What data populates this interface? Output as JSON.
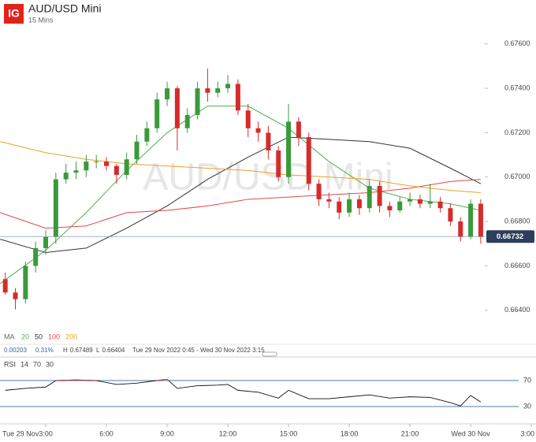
{
  "chart_data": [
    {
      "type": "candlestick",
      "title": "AUD/USD Mini",
      "subtitle": "15 Mins",
      "watermark": "AUD/USD Mini",
      "logo": "IG",
      "x": [
        1,
        1.5,
        2,
        2.5,
        3,
        3.5,
        4,
        4.5,
        5,
        5.5,
        6,
        6.5,
        7,
        7.5,
        8,
        8.5,
        9,
        9.5,
        10,
        10.5,
        11,
        11.5,
        12,
        12.5,
        13,
        13.5,
        14,
        14.5,
        15,
        15.5,
        16,
        16.5,
        17,
        17.5,
        18,
        18.5,
        19,
        19.5,
        20,
        20.5,
        21,
        21.5,
        22,
        22.5,
        23,
        23.5,
        24,
        24.5
      ],
      "open": [
        0.6654,
        0.6648,
        0.6645,
        0.666,
        0.6668,
        0.6673,
        0.6699,
        0.6702,
        0.6703,
        0.6707,
        0.6707,
        0.6705,
        0.6701,
        0.6708,
        0.6716,
        0.6722,
        0.6735,
        0.674,
        0.6722,
        0.6728,
        0.674,
        0.6738,
        0.674,
        0.6742,
        0.673,
        0.6722,
        0.672,
        0.6712,
        0.67,
        0.6725,
        0.6718,
        0.6697,
        0.669,
        0.6689,
        0.6684,
        0.669,
        0.6686,
        0.6696,
        0.6687,
        0.6685,
        0.6689,
        0.669,
        0.6688,
        0.6689,
        0.6686,
        0.668,
        0.6673,
        0.6688
      ],
      "high": [
        0.6657,
        0.665,
        0.6662,
        0.6671,
        0.6676,
        0.6702,
        0.6706,
        0.6707,
        0.671,
        0.671,
        0.6709,
        0.6706,
        0.6711,
        0.6719,
        0.6725,
        0.6738,
        0.6743,
        0.6741,
        0.6731,
        0.6743,
        0.67489,
        0.6743,
        0.6746,
        0.6744,
        0.6733,
        0.6725,
        0.6723,
        0.6714,
        0.6733,
        0.6727,
        0.672,
        0.6699,
        0.6693,
        0.6691,
        0.6693,
        0.6692,
        0.6699,
        0.6698,
        0.6689,
        0.6691,
        0.6693,
        0.6692,
        0.6697,
        0.6691,
        0.6688,
        0.6682,
        0.669,
        0.669
      ],
      "low": [
        0.6647,
        0.66404,
        0.6643,
        0.6657,
        0.6665,
        0.667,
        0.6697,
        0.6699,
        0.67,
        0.6704,
        0.6703,
        0.6697,
        0.6699,
        0.6706,
        0.6714,
        0.672,
        0.6732,
        0.6712,
        0.672,
        0.6726,
        0.6734,
        0.6736,
        0.6738,
        0.6728,
        0.6718,
        0.6716,
        0.6708,
        0.6698,
        0.6697,
        0.6714,
        0.6694,
        0.6687,
        0.6686,
        0.6681,
        0.6682,
        0.6683,
        0.6684,
        0.6684,
        0.6682,
        0.6684,
        0.6687,
        0.6686,
        0.6686,
        0.6684,
        0.6678,
        0.6671,
        0.6672,
        0.667
      ],
      "close": [
        0.6648,
        0.6645,
        0.666,
        0.6668,
        0.6673,
        0.6699,
        0.6702,
        0.6703,
        0.6707,
        0.6707,
        0.6705,
        0.6701,
        0.6708,
        0.6716,
        0.6722,
        0.6735,
        0.674,
        0.6722,
        0.6728,
        0.674,
        0.6738,
        0.674,
        0.6742,
        0.673,
        0.6722,
        0.672,
        0.6712,
        0.67,
        0.6725,
        0.6718,
        0.6697,
        0.669,
        0.6689,
        0.6684,
        0.669,
        0.6686,
        0.6696,
        0.6687,
        0.6685,
        0.6689,
        0.669,
        0.6688,
        0.6689,
        0.6686,
        0.668,
        0.6673,
        0.6688,
        0.6673
      ],
      "up_color": "#3a9a3a",
      "down_color": "#d62b2b",
      "ma_label": "MA",
      "ma_series": [
        {
          "name": "20",
          "color": "#4caf50",
          "x": [
            0.75,
            3,
            5,
            7,
            9,
            11,
            13,
            15,
            17,
            19,
            21,
            23,
            24.5
          ],
          "values": [
            0.6652,
            0.6667,
            0.6684,
            0.6703,
            0.672,
            0.6732,
            0.6732,
            0.6722,
            0.6707,
            0.6695,
            0.669,
            0.6688,
            0.6685
          ]
        },
        {
          "name": "50",
          "color": "#333333",
          "x": [
            0.75,
            3,
            5,
            7,
            9,
            11,
            13,
            15,
            17,
            19,
            21,
            23,
            24.5
          ],
          "values": [
            0.6672,
            0.6666,
            0.6668,
            0.6677,
            0.6687,
            0.6699,
            0.6709,
            0.6718,
            0.6717,
            0.6716,
            0.6713,
            0.6704,
            0.6697
          ]
        },
        {
          "name": "100",
          "color": "#e04848",
          "x": [
            0.75,
            3,
            5,
            7,
            9,
            11,
            13,
            15,
            17,
            19,
            21,
            23,
            24.5
          ],
          "values": [
            0.6684,
            0.6677,
            0.6678,
            0.6684,
            0.6685,
            0.6687,
            0.669,
            0.6691,
            0.6692,
            0.6693,
            0.6695,
            0.6698,
            0.6699
          ]
        },
        {
          "name": "200",
          "color": "#f0a020",
          "x": [
            0.75,
            3,
            5,
            7,
            9,
            11,
            13,
            15,
            17,
            19,
            21,
            23,
            24.5
          ],
          "values": [
            0.6716,
            0.6711,
            0.6708,
            0.6706,
            0.6705,
            0.6704,
            0.6703,
            0.6701,
            0.67,
            0.6699,
            0.6696,
            0.6694,
            0.6693
          ]
        }
      ],
      "last_price": 0.66732,
      "change": 0.00203,
      "change_pct": "0.31%",
      "high_label": "H",
      "high_value": 0.67489,
      "low_label": "L",
      "low_value": 0.66404,
      "range": "Tue 29 Nov 2022 0:45 - Wed 30 Nov 2022 3:15",
      "xlim": [
        0.74,
        27.23
      ],
      "xticks": [
        {
          "value": 0,
          "label": "Tue 29 Nov"
        },
        {
          "value": 3,
          "label": "3:00"
        },
        {
          "value": 6,
          "label": "6:00"
        },
        {
          "value": 9,
          "label": "9:00"
        },
        {
          "value": 12,
          "label": "12:00"
        },
        {
          "value": 15,
          "label": "15:00"
        },
        {
          "value": 18,
          "label": "18:00"
        },
        {
          "value": 21,
          "label": "21:00"
        },
        {
          "value": 24,
          "label": "Wed 30 Nov"
        },
        {
          "value": 27,
          "label": "3:00"
        }
      ],
      "ylim": [
        0.66346,
        0.67766
      ],
      "yticks": [
        {
          "value": 0.664,
          "label": "0.66400"
        },
        {
          "value": 0.666,
          "label": "0.66600"
        },
        {
          "value": 0.668,
          "label": "0.66800"
        },
        {
          "value": 0.67,
          "label": "0.67000"
        },
        {
          "value": 0.672,
          "label": "0.67200"
        },
        {
          "value": 0.674,
          "label": "0.67400"
        },
        {
          "value": 0.676,
          "label": "0.67600"
        }
      ]
    },
    {
      "type": "line",
      "title": "RSI",
      "period": 14,
      "upper": 70,
      "lower": 30,
      "x": [
        1,
        2,
        3,
        3.5,
        4.5,
        5.5,
        6.5,
        7.5,
        8.5,
        9,
        9.5,
        10.5,
        11.5,
        12,
        12.5,
        13.5,
        14.5,
        15,
        16,
        17,
        18,
        19,
        20,
        21,
        22,
        23,
        23.5,
        24,
        24.5
      ],
      "values": [
        55,
        58,
        60,
        70,
        71,
        70,
        64,
        66,
        70,
        72,
        58,
        62,
        63,
        64,
        55,
        52,
        43,
        55,
        42,
        42,
        45,
        48,
        43,
        45,
        44,
        36,
        31,
        47,
        37
      ],
      "color": "#111111",
      "over_color": "#d62b2b",
      "level_color": "#4a7fb0",
      "ylim": [
        0,
        100
      ],
      "yticks": [
        30,
        70
      ]
    }
  ]
}
